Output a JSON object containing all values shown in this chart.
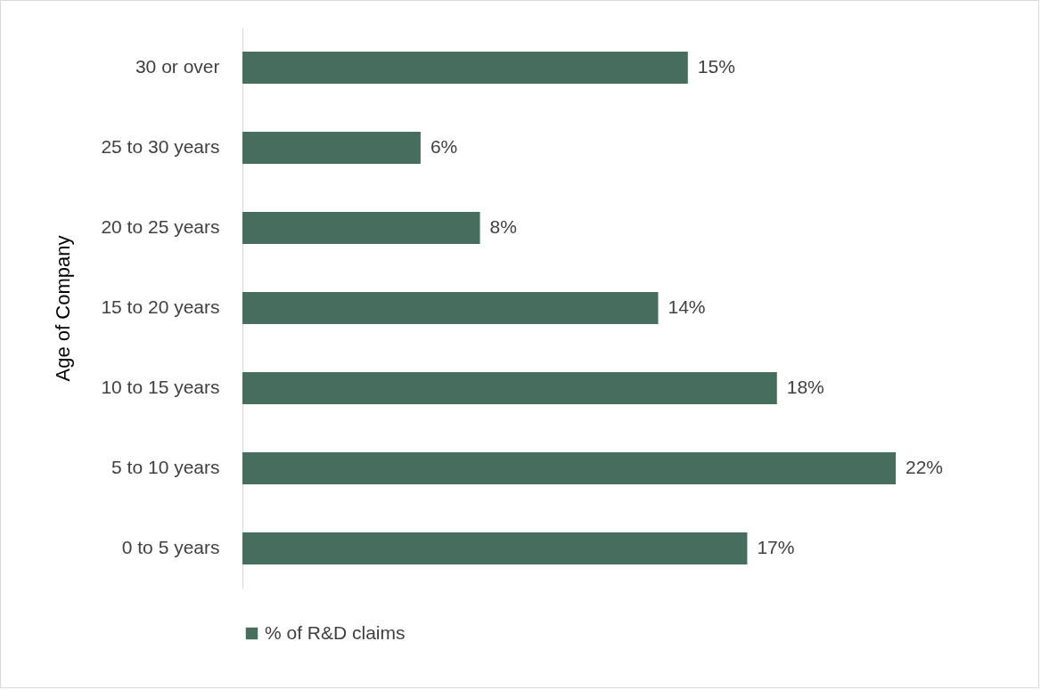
{
  "chart_data": {
    "type": "bar",
    "orientation": "horizontal",
    "ylabel": "Age of Company",
    "categories": [
      "30 or over",
      "25 to 30 years",
      "20 to 25 years",
      "15 to 20 years",
      "10 to 15 years",
      "5 to 10 years",
      "0 to 5 years"
    ],
    "series": [
      {
        "name": "% of R&D  claims",
        "color": "#466d5e",
        "values": [
          15,
          6,
          8,
          14,
          18,
          22,
          17
        ],
        "value_labels": [
          "15%",
          "6%",
          "8%",
          "14%",
          "18%",
          "22%",
          "17%"
        ]
      }
    ],
    "legend": "bottom",
    "grid": false
  }
}
